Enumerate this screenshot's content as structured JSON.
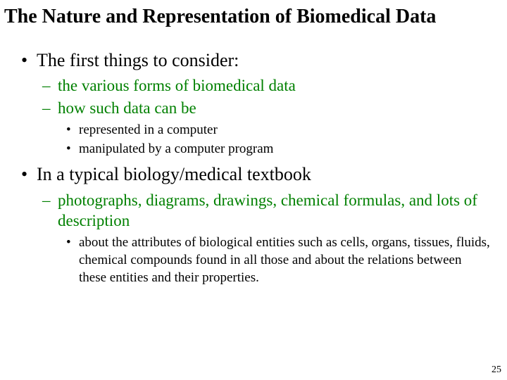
{
  "title": "The Nature and Representation of Biomedical Data",
  "colors": {
    "title": "#000000",
    "l1": "#000000",
    "l2": "#008000",
    "l3": "#000000",
    "background": "#ffffff"
  },
  "fontsizes": {
    "title": 28,
    "l1": 26,
    "l2": 23,
    "l3": 19,
    "page_num": 14
  },
  "bullets": {
    "l1": {
      "0": {
        "text": "The first things to consider:",
        "children": {
          "0": {
            "text": "the various forms of biomedical data"
          },
          "1": {
            "text": "how such data can be",
            "children": {
              "0": {
                "text": "represented in a computer"
              },
              "1": {
                "text": "manipulated by a computer program"
              }
            }
          }
        }
      },
      "1": {
        "text": "In a typical biology/medical textbook",
        "children": {
          "0": {
            "text": "photographs, diagrams, drawings, chemical formulas, and lots of description",
            "children": {
              "0": {
                "text": "about the attributes of biological entities such as cells, organs, tissues, fluids, chemical compounds found in all those and about the relations between these entities and their properties."
              }
            }
          }
        }
      }
    }
  },
  "page_number": "25"
}
